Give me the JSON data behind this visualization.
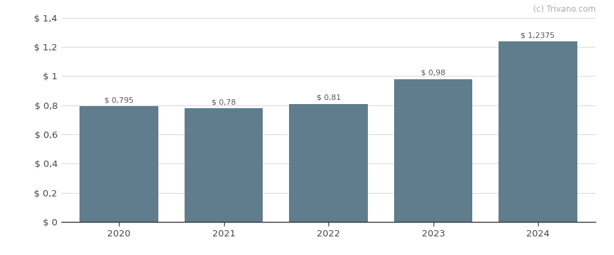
{
  "years": [
    2020,
    2021,
    2022,
    2023,
    2024
  ],
  "values": [
    0.795,
    0.78,
    0.81,
    0.98,
    1.2375
  ],
  "labels": [
    "$ 0,795",
    "$ 0,78",
    "$ 0,81",
    "$ 0,98",
    "$ 1,2375"
  ],
  "bar_color": "#5f7d8d",
  "background_color": "#ffffff",
  "ylim": [
    0,
    1.4
  ],
  "yticks": [
    0,
    0.2,
    0.4,
    0.6,
    0.8,
    1.0,
    1.2,
    1.4
  ],
  "ytick_labels": [
    "$ 0",
    "$ 0,2",
    "$ 0,4",
    "$ 0,6",
    "$ 0,8",
    "$ 1",
    "$ 1,2",
    "$ 1,4"
  ],
  "watermark": "(c) Trivano.com",
  "grid_color": "#d8d8d8",
  "label_fontsize": 8.0,
  "tick_fontsize": 9.5,
  "watermark_fontsize": 8.5,
  "bar_width": 0.75,
  "label_color": "#555555",
  "tick_color": "#444444"
}
